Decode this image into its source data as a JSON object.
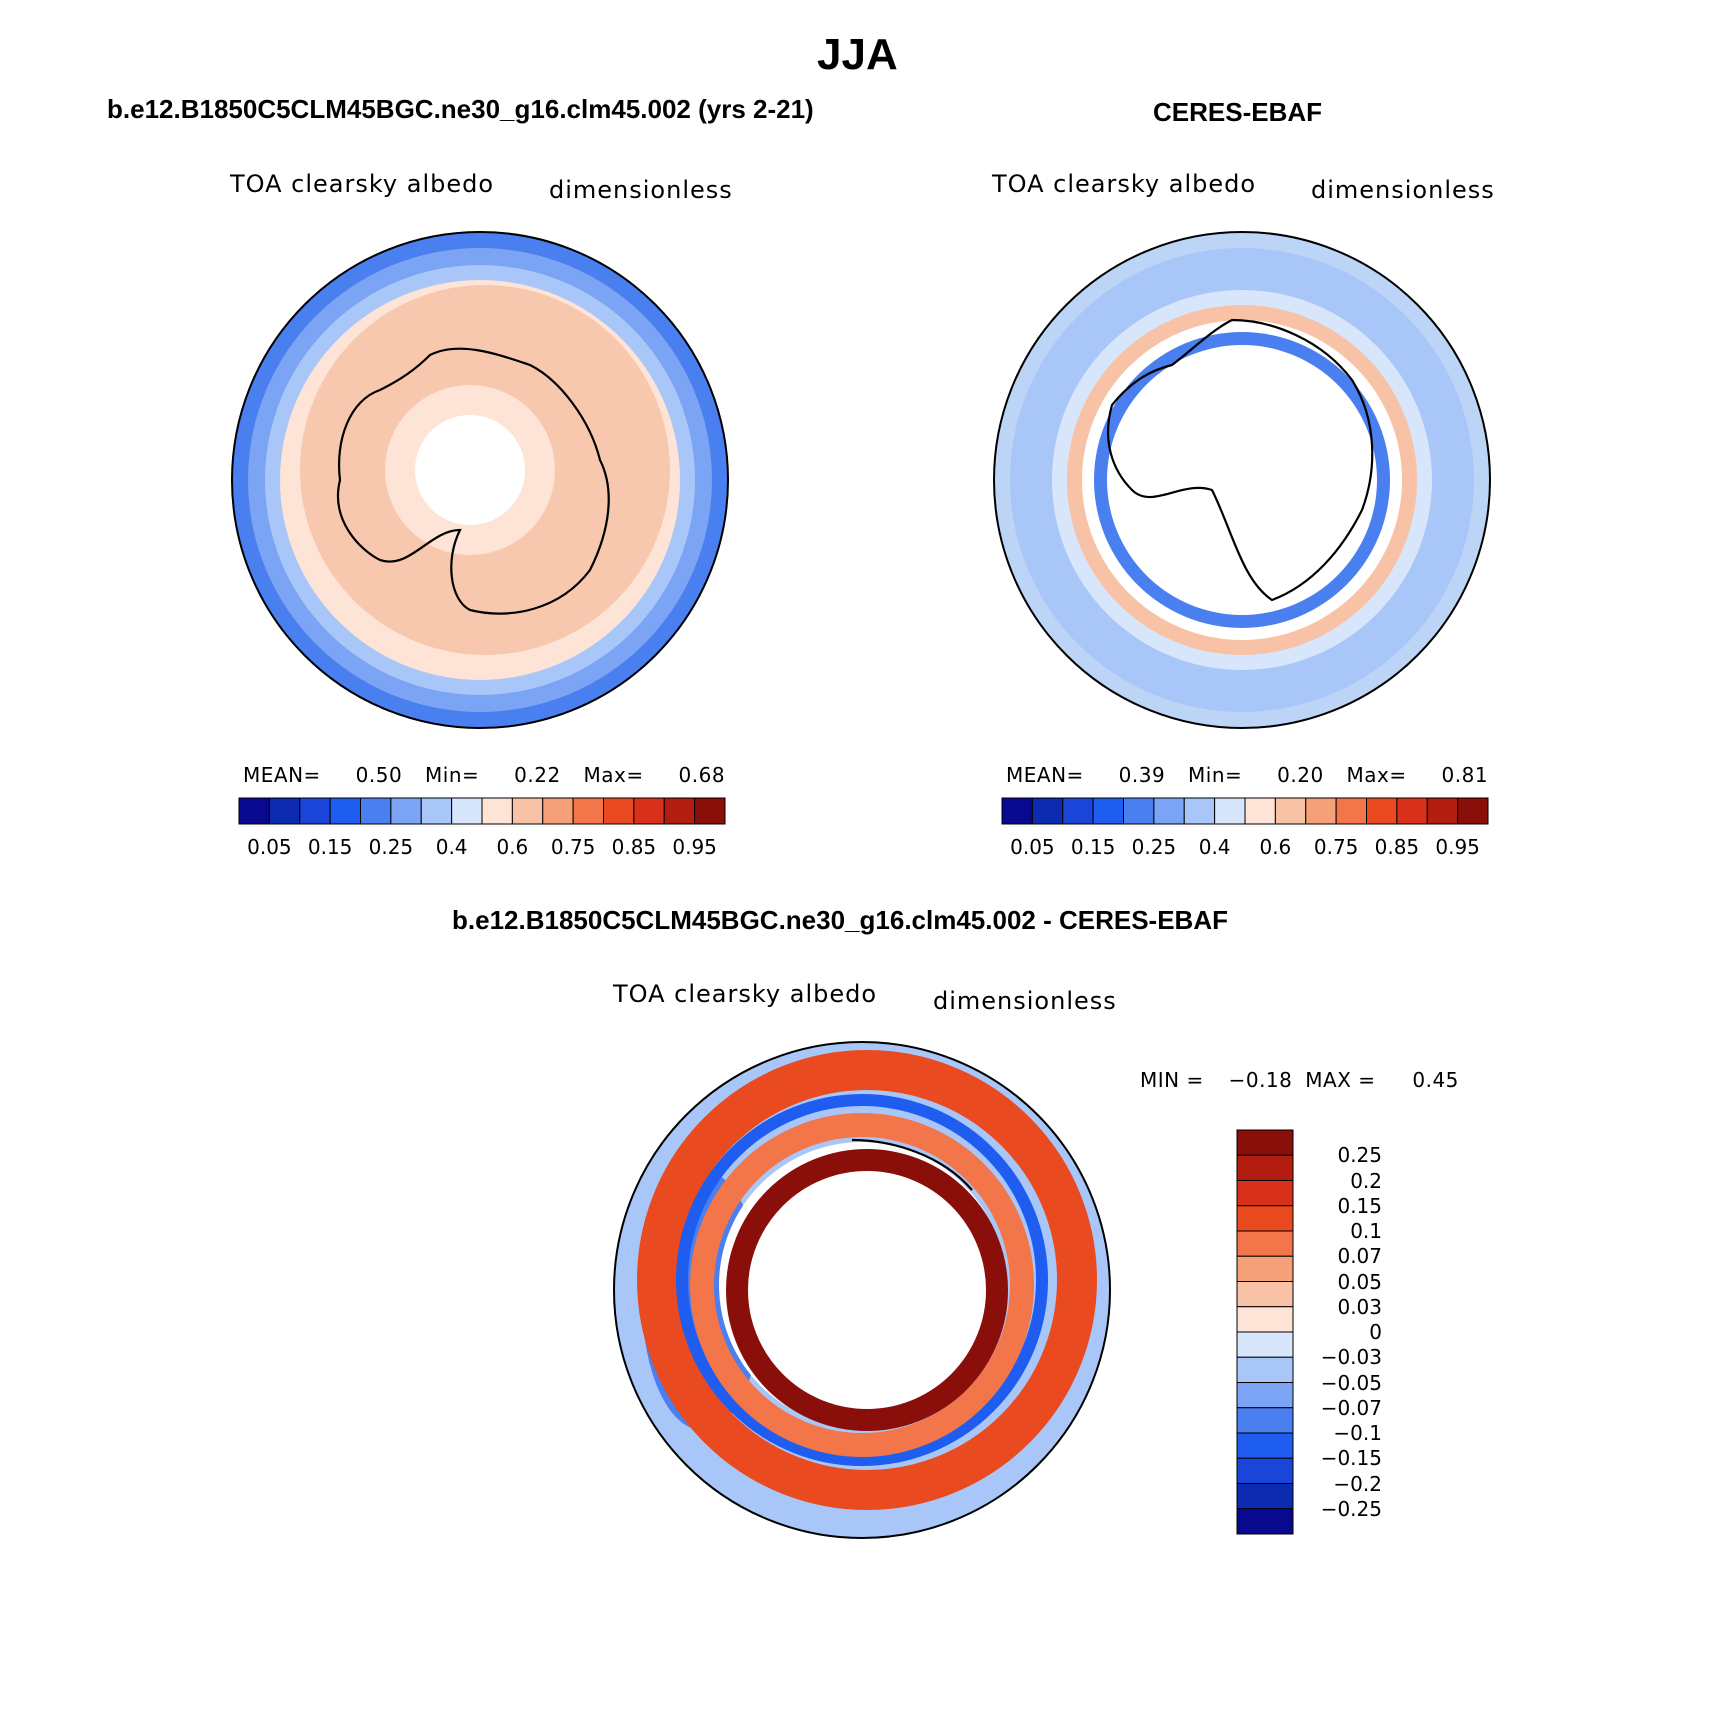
{
  "page_title": "JJA",
  "panels": [
    {
      "title": "b.e12.B1850C5CLM45BGC.ne30_g16.clm45.002 (yrs 2-21)",
      "variable": "TOA clearsky albedo",
      "units": "dimensionless",
      "stats": {
        "mean_label": "MEAN=",
        "mean": "0.50",
        "min_label": "Min=",
        "min": "0.22",
        "max_label": "Max=",
        "max": "0.68"
      },
      "map_fill": "#f7c8ad"
    },
    {
      "title": "CERES-EBAF",
      "variable": "TOA clearsky albedo",
      "units": "dimensionless",
      "stats": {
        "mean_label": "MEAN=",
        "mean": "0.39",
        "min_label": "Min=",
        "min": "0.20",
        "max_label": "Max=",
        "max": "0.81"
      },
      "map_fill": "#bcd4f6"
    }
  ],
  "abs_colorbar": {
    "colors": [
      "#08098f",
      "#0c2bb0",
      "#1a45d8",
      "#1f5df0",
      "#4a7ff0",
      "#7ba4f4",
      "#a9c6f8",
      "#d7e6fb",
      "#fde4d6",
      "#f8c2a6",
      "#f5a078",
      "#f2764a",
      "#ea4a1f",
      "#d8301a",
      "#b31d10",
      "#8a0f0a"
    ],
    "labels": [
      "0.05",
      "0.15",
      "0.25",
      "0.4",
      "0.6",
      "0.75",
      "0.85",
      "0.95"
    ]
  },
  "diff_panel": {
    "title": "b.e12.B1850C5CLM45BGC.ne30_g16.clm45.002 - CERES-EBAF",
    "variable": "TOA clearsky albedo",
    "units": "dimensionless",
    "min_label": "MIN =",
    "min": "−0.18",
    "max_label": "MAX =",
    "max": "0.45",
    "colorbar_colors": [
      "#8a0f0a",
      "#b31d10",
      "#d8301a",
      "#ea4a1f",
      "#f2764a",
      "#f5a078",
      "#f8c2a6",
      "#fde4d6",
      "#d7e6fb",
      "#a9c6f8",
      "#7ba4f4",
      "#4a7ff0",
      "#1f5df0",
      "#1a45d8",
      "#0c2bb0",
      "#08098f"
    ],
    "colorbar_labels": [
      "0.25",
      "0.2",
      "0.15",
      "0.1",
      "0.07",
      "0.05",
      "0.03",
      "0",
      "−0.03",
      "−0.05",
      "−0.07",
      "−0.1",
      "−0.15",
      "−0.2",
      "−0.25"
    ]
  }
}
